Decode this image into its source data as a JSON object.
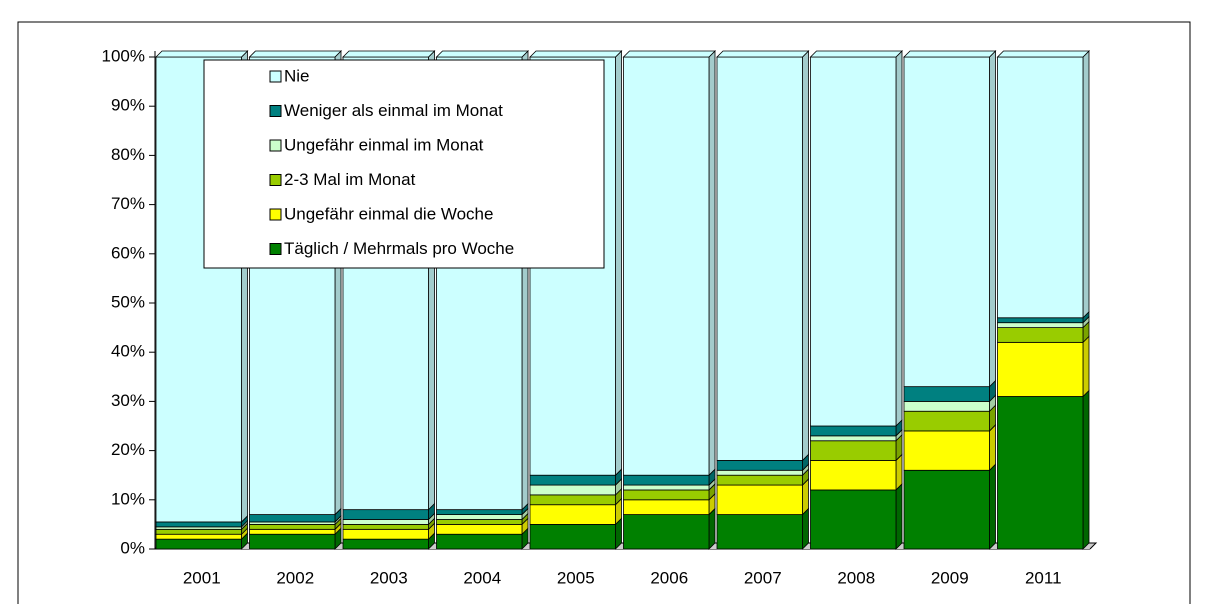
{
  "chart_data": {
    "type": "bar",
    "stacked": true,
    "categories": [
      "2001",
      "2002",
      "2003",
      "2004",
      "2005",
      "2006",
      "2007",
      "2008",
      "2009",
      "2011"
    ],
    "series": [
      {
        "name": "Täglich / Mehrmals pro Woche",
        "color": "#008000",
        "values": [
          2,
          3,
          2,
          3,
          5,
          7,
          7,
          12,
          16,
          31
        ]
      },
      {
        "name": "Ungefähr einmal die Woche",
        "color": "#ffff00",
        "values": [
          1,
          1,
          2,
          2,
          4,
          3,
          6,
          6,
          8,
          11
        ]
      },
      {
        "name": "2-3 Mal im Monat",
        "color": "#99cc00",
        "values": [
          1,
          1,
          1,
          1,
          2,
          2,
          2,
          4,
          4,
          3
        ]
      },
      {
        "name": "Ungefähr einmal im Monat",
        "color": "#ccffcc",
        "values": [
          0.5,
          0.5,
          1,
          1,
          2,
          1,
          1,
          1,
          2,
          1
        ]
      },
      {
        "name": "Weniger als einmal im Monat",
        "color": "#008080",
        "values": [
          1,
          1.5,
          2,
          1,
          2,
          2,
          2,
          2,
          3,
          1
        ]
      },
      {
        "name": "Nie",
        "color": "#ccffff",
        "values": [
          94.5,
          93,
          92,
          92,
          85,
          85,
          82,
          75,
          67,
          53
        ]
      }
    ],
    "ylim": [
      0,
      100
    ],
    "yticks": [
      {
        "value": 0,
        "label": "0%"
      },
      {
        "value": 10,
        "label": "10%"
      },
      {
        "value": 20,
        "label": "20%"
      },
      {
        "value": 30,
        "label": "30%"
      },
      {
        "value": 40,
        "label": "40%"
      },
      {
        "value": 50,
        "label": "50%"
      },
      {
        "value": 60,
        "label": "60%"
      },
      {
        "value": 70,
        "label": "70%"
      },
      {
        "value": 80,
        "label": "80%"
      },
      {
        "value": 90,
        "label": "90%"
      },
      {
        "value": 100,
        "label": "100%"
      }
    ],
    "legend": "upper left"
  }
}
